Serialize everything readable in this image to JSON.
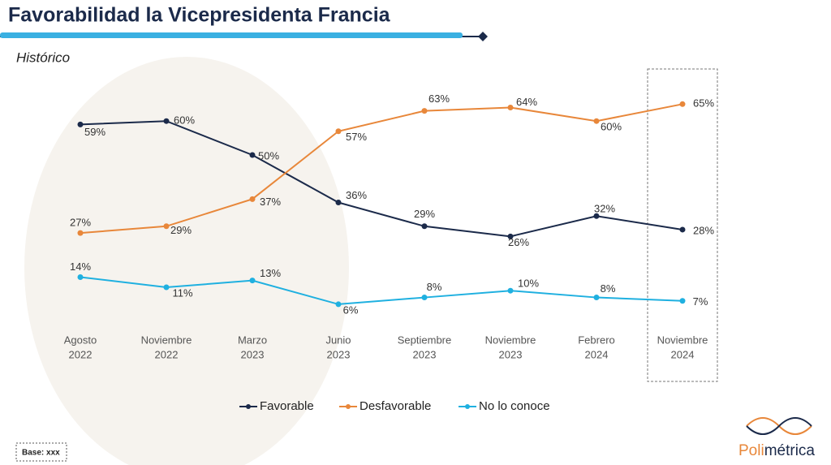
{
  "chart_data": {
    "type": "line",
    "title": "Favorabilidad la Vicepresidenta Francia",
    "subtitle": "Histórico",
    "categories": [
      [
        "Agosto",
        "2022"
      ],
      [
        "Noviembre",
        "2022"
      ],
      [
        "Marzo",
        "2023"
      ],
      [
        "Junio",
        "2023"
      ],
      [
        "Septiembre",
        "2023"
      ],
      [
        "Noviembre",
        "2023"
      ],
      [
        "Febrero",
        "2024"
      ],
      [
        "Noviembre",
        "2024"
      ]
    ],
    "series": [
      {
        "name": "Favorable",
        "color": "#1b2a4a",
        "values": [
          59,
          60,
          50,
          36,
          29,
          26,
          32,
          28
        ],
        "value_labels": [
          "59%",
          "60%",
          "50%",
          "36%",
          "29%",
          "26%",
          "32%",
          "28%"
        ]
      },
      {
        "name": "Desfavorable",
        "color": "#e8873a",
        "values": [
          27,
          29,
          37,
          57,
          63,
          64,
          60,
          65
        ],
        "value_labels": [
          "27%",
          "29%",
          "37%",
          "57%",
          "63%",
          "64%",
          "60%",
          "65%"
        ]
      },
      {
        "name": "No lo conoce",
        "color": "#1fb0e0",
        "values": [
          14,
          11,
          13,
          6,
          8,
          10,
          8,
          7
        ],
        "value_labels": [
          "14%",
          "11%",
          "13%",
          "6%",
          "8%",
          "10%",
          "8%",
          "7%"
        ]
      }
    ],
    "legend": "bottom"
  },
  "footer": {
    "base": "Base: xxx",
    "logo": [
      "Poli",
      "métrica"
    ]
  }
}
